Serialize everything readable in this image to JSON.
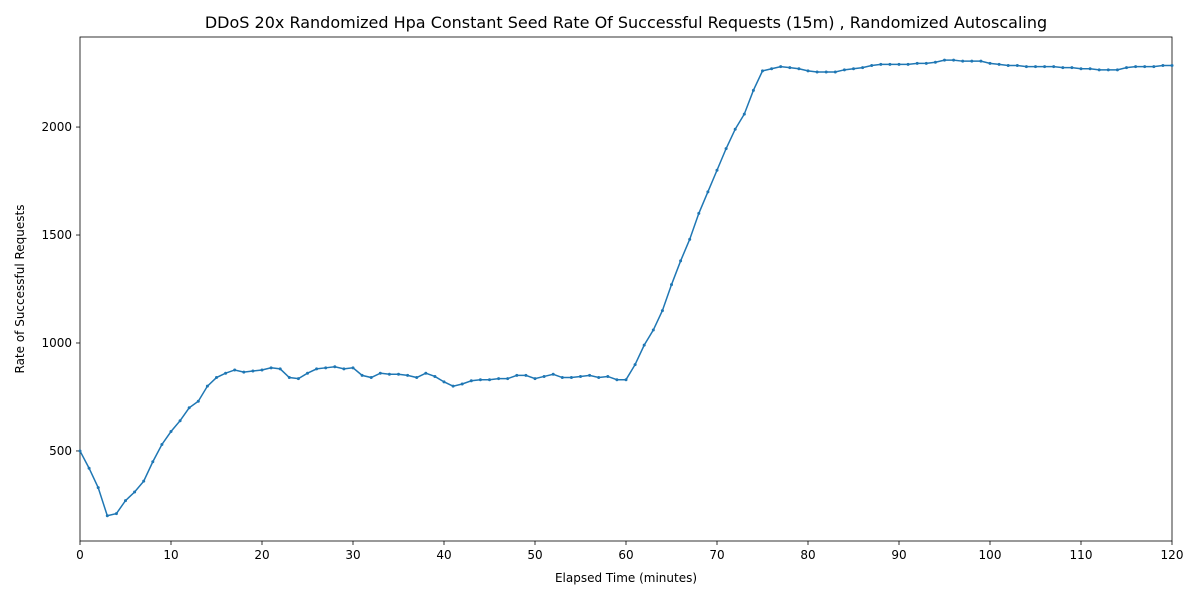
{
  "chart_data": {
    "type": "line",
    "title": "DDoS 20x Randomized Hpa Constant Seed Rate Of Successful Requests (15m) , Randomized Autoscaling",
    "xlabel": "Elapsed Time (minutes)",
    "ylabel": "Rate of Successful Requests",
    "x": [
      0,
      1,
      2,
      3,
      4,
      5,
      6,
      7,
      8,
      9,
      10,
      11,
      12,
      13,
      14,
      15,
      16,
      17,
      18,
      19,
      20,
      21,
      22,
      23,
      24,
      25,
      26,
      27,
      28,
      29,
      30,
      31,
      32,
      33,
      34,
      35,
      36,
      37,
      38,
      39,
      40,
      41,
      42,
      43,
      44,
      45,
      46,
      47,
      48,
      49,
      50,
      51,
      52,
      53,
      54,
      55,
      56,
      57,
      58,
      59,
      60,
      61,
      62,
      63,
      64,
      65,
      66,
      67,
      68,
      69,
      70,
      71,
      72,
      73,
      74,
      75,
      76,
      77,
      78,
      79,
      80,
      81,
      82,
      83,
      84,
      85,
      86,
      87,
      88,
      89,
      90,
      91,
      92,
      93,
      94,
      95,
      96,
      97,
      98,
      99,
      100,
      101,
      102,
      103,
      104,
      105,
      106,
      107,
      108,
      109,
      110,
      111,
      112,
      113,
      114,
      115,
      116,
      117,
      118,
      119,
      120
    ],
    "series": [
      {
        "name": "Rate of Successful Requests",
        "color": "#1f77b4",
        "values": [
          500,
          420,
          330,
          200,
          210,
          270,
          310,
          360,
          450,
          530,
          590,
          640,
          700,
          730,
          800,
          840,
          860,
          875,
          865,
          870,
          875,
          885,
          880,
          840,
          835,
          860,
          880,
          885,
          890,
          880,
          885,
          850,
          840,
          860,
          855,
          855,
          850,
          840,
          860,
          845,
          820,
          800,
          810,
          825,
          830,
          830,
          835,
          835,
          850,
          850,
          835,
          845,
          855,
          840,
          840,
          845,
          850,
          840,
          845,
          830,
          830,
          900,
          990,
          1060,
          1150,
          1270,
          1380,
          1480,
          1600,
          1700,
          1800,
          1900,
          1990,
          2060,
          2170,
          2260,
          2270,
          2280,
          2275,
          2270,
          2260,
          2255,
          2255,
          2255,
          2265,
          2270,
          2275,
          2285,
          2290,
          2290,
          2290,
          2290,
          2295,
          2295,
          2300,
          2310,
          2310,
          2305,
          2305,
          2305,
          2295,
          2290,
          2285,
          2285,
          2280,
          2280,
          2280,
          2280,
          2275,
          2275,
          2270,
          2270,
          2265,
          2265,
          2265,
          2275,
          2280,
          2280,
          2280,
          2285,
          2285
        ]
      }
    ],
    "xlim": [
      0,
      120
    ],
    "xticks": [
      0,
      10,
      20,
      30,
      40,
      50,
      60,
      70,
      80,
      90,
      100,
      110,
      120
    ],
    "ylim": [
      83,
      2417
    ],
    "yticks": [
      500,
      1000,
      1500,
      2000
    ],
    "grid": false
  }
}
